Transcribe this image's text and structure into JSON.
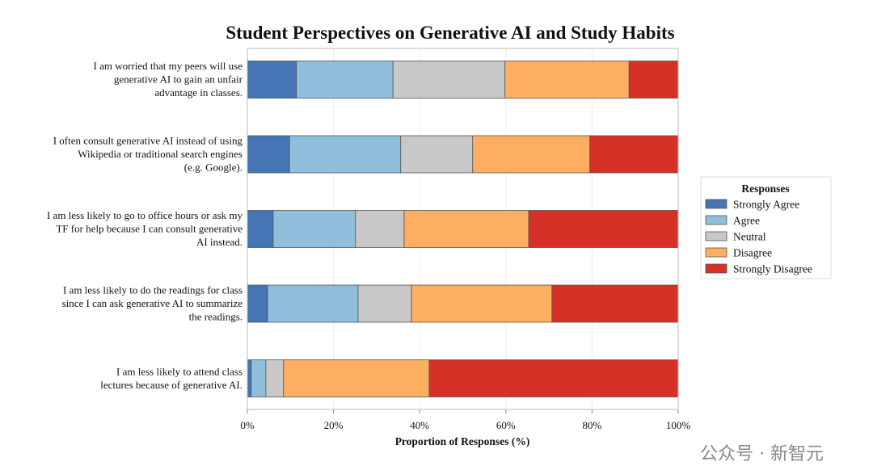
{
  "chart_data": {
    "type": "bar",
    "orientation": "horizontal",
    "stacked": true,
    "title": "Student Perspectives on Generative AI and Study Habits",
    "xlabel": "Proportion of Responses (%)",
    "ylabel": "",
    "xlim": [
      0,
      100
    ],
    "xticks": [
      "0%",
      "20%",
      "40%",
      "60%",
      "80%",
      "100%"
    ],
    "grid": "vertical",
    "categories": [
      [
        "I am worried that my peers will use",
        "generative AI to gain an unfair",
        "advantage in classes."
      ],
      [
        "I often consult generative AI instead of using",
        "Wikipedia or traditional search engines",
        "(e.g. Google)."
      ],
      [
        "I am less likely to go to office hours or ask my",
        "TF for help because I can consult generative",
        "AI instead."
      ],
      [
        "I am less likely to do the readings for class",
        "since I can ask generative AI to summarize",
        "the readings."
      ],
      [
        "I am less likely to attend class",
        "lectures because of generative AI."
      ]
    ],
    "series": [
      {
        "name": "Strongly Agree",
        "color": "#4575b4",
        "values": [
          11.4,
          9.8,
          6.0,
          4.7,
          0.9
        ]
      },
      {
        "name": "Agree",
        "color": "#91bfdb",
        "values": [
          22.4,
          25.8,
          19.1,
          21.0,
          3.4
        ]
      },
      {
        "name": "Neutral",
        "color": "#c8c8c8",
        "values": [
          26.0,
          16.7,
          11.3,
          12.4,
          4.1
        ]
      },
      {
        "name": "Disagree",
        "color": "#fdae61",
        "values": [
          28.8,
          27.2,
          28.9,
          32.6,
          33.8
        ]
      },
      {
        "name": "Strongly Disagree",
        "color": "#d73027",
        "values": [
          11.4,
          20.5,
          34.7,
          29.3,
          57.8
        ]
      }
    ],
    "legend": {
      "title": "Responses",
      "placement": "right"
    }
  },
  "watermark": "公众号 · 新智元"
}
